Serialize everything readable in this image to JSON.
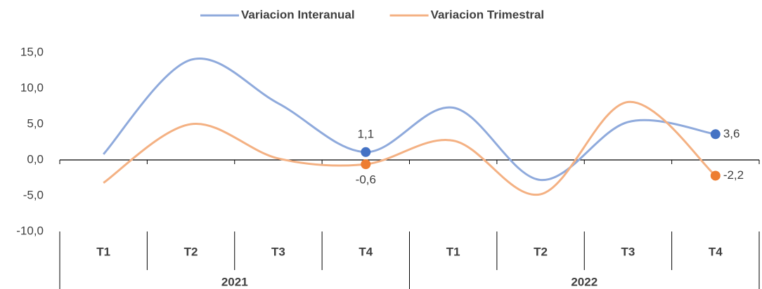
{
  "chart_data": {
    "type": "line",
    "categories": [
      "T1",
      "T2",
      "T3",
      "T4",
      "T1",
      "T2",
      "T3",
      "T4"
    ],
    "groups": [
      "2021",
      "2022"
    ],
    "series": [
      {
        "name": "Variacion Interanual",
        "color": "#8faadc",
        "marker_color": "#4472c4",
        "values": [
          0.8,
          14.0,
          7.9,
          1.1,
          7.3,
          -2.8,
          5.3,
          3.6
        ],
        "value_labels": [
          null,
          null,
          null,
          "1,1",
          null,
          null,
          null,
          "3,6"
        ]
      },
      {
        "name": "Variacion Trimestral",
        "color": "#f4b183",
        "marker_color": "#ed7d31",
        "values": [
          -3.2,
          5.0,
          0.2,
          -0.6,
          2.7,
          -4.8,
          8.1,
          -2.2
        ],
        "value_labels": [
          null,
          null,
          null,
          "-0,6",
          null,
          null,
          null,
          "-2,2"
        ]
      }
    ],
    "ylim": [
      -10,
      15
    ],
    "yticks": [
      {
        "value": -10,
        "label": "-10,0"
      },
      {
        "value": -5,
        "label": "-5,0"
      },
      {
        "value": 0,
        "label": "0,0"
      },
      {
        "value": 5,
        "label": "5,0"
      },
      {
        "value": 10,
        "label": "10,0"
      },
      {
        "value": 15,
        "label": "15,0"
      }
    ],
    "legend": "top"
  }
}
